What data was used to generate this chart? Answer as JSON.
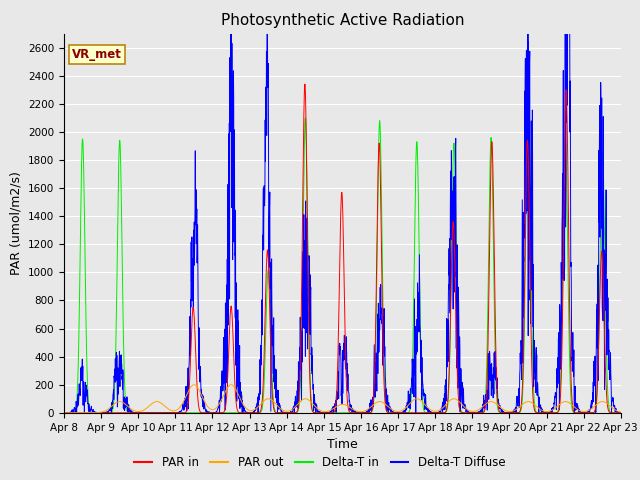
{
  "title": "Photosynthetic Active Radiation",
  "xlabel": "Time",
  "ylabel": "PAR (umol/m2/s)",
  "annotation": "VR_met",
  "ylim": [
    0,
    2700
  ],
  "yticks": [
    0,
    200,
    400,
    600,
    800,
    1000,
    1200,
    1400,
    1600,
    1800,
    2000,
    2200,
    2400,
    2600
  ],
  "xtick_labels": [
    "Apr 8",
    "Apr 9",
    "Apr 10",
    "Apr 11",
    "Apr 12",
    "Apr 13",
    "Apr 14",
    "Apr 15",
    "Apr 16",
    "Apr 17",
    "Apr 18",
    "Apr 19",
    "Apr 20",
    "Apr 21",
    "Apr 22",
    "Apr 23"
  ],
  "line_colors": {
    "PAR in": "#ff0000",
    "PAR out": "#ffa500",
    "Delta-T in": "#00ee00",
    "Delta-T Diffuse": "#0000ff"
  },
  "bg_color": "#e8e8e8",
  "title_fontsize": 11,
  "axis_fontsize": 9,
  "tick_fontsize": 7.5
}
